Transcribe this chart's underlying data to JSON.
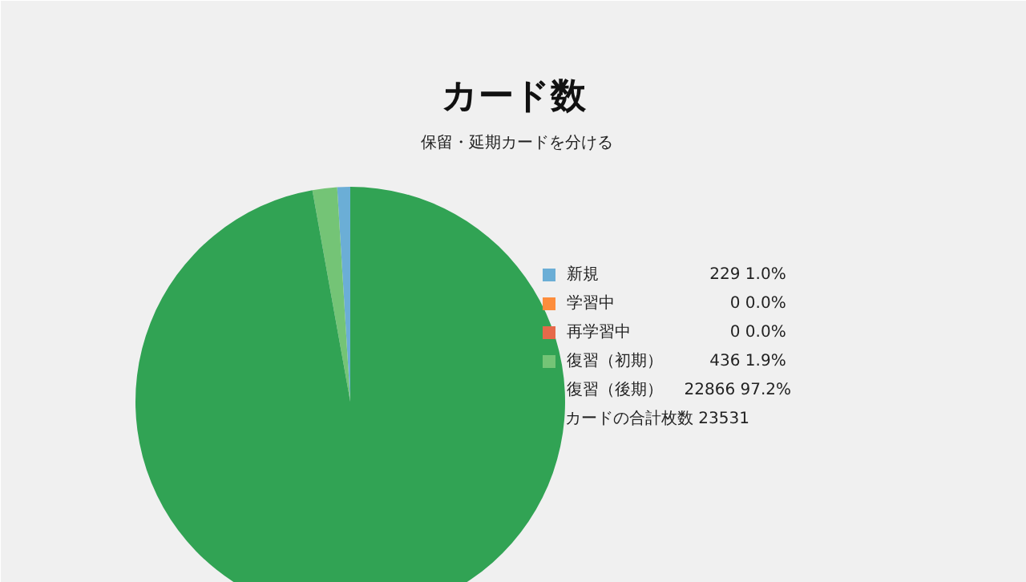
{
  "chart_data": {
    "type": "pie",
    "title": "カード数",
    "subtitle": "保留・延期カードを分ける",
    "categories": [
      "新規",
      "学習中",
      "再学習中",
      "復習（初期）",
      "復習（後期）"
    ],
    "values": [
      229,
      0,
      0,
      436,
      22866
    ],
    "colors": [
      "#6baed6",
      "#fd8d3c",
      "#e6694a",
      "#74c476",
      "#31a354"
    ],
    "value_labels": [
      "229  1.0%",
      "0  0.0%",
      "0  0.0%",
      "436  1.9%",
      "22866 97.2%"
    ],
    "legend": "right",
    "annotations": [
      "カードの合計枚数 23531"
    ]
  }
}
